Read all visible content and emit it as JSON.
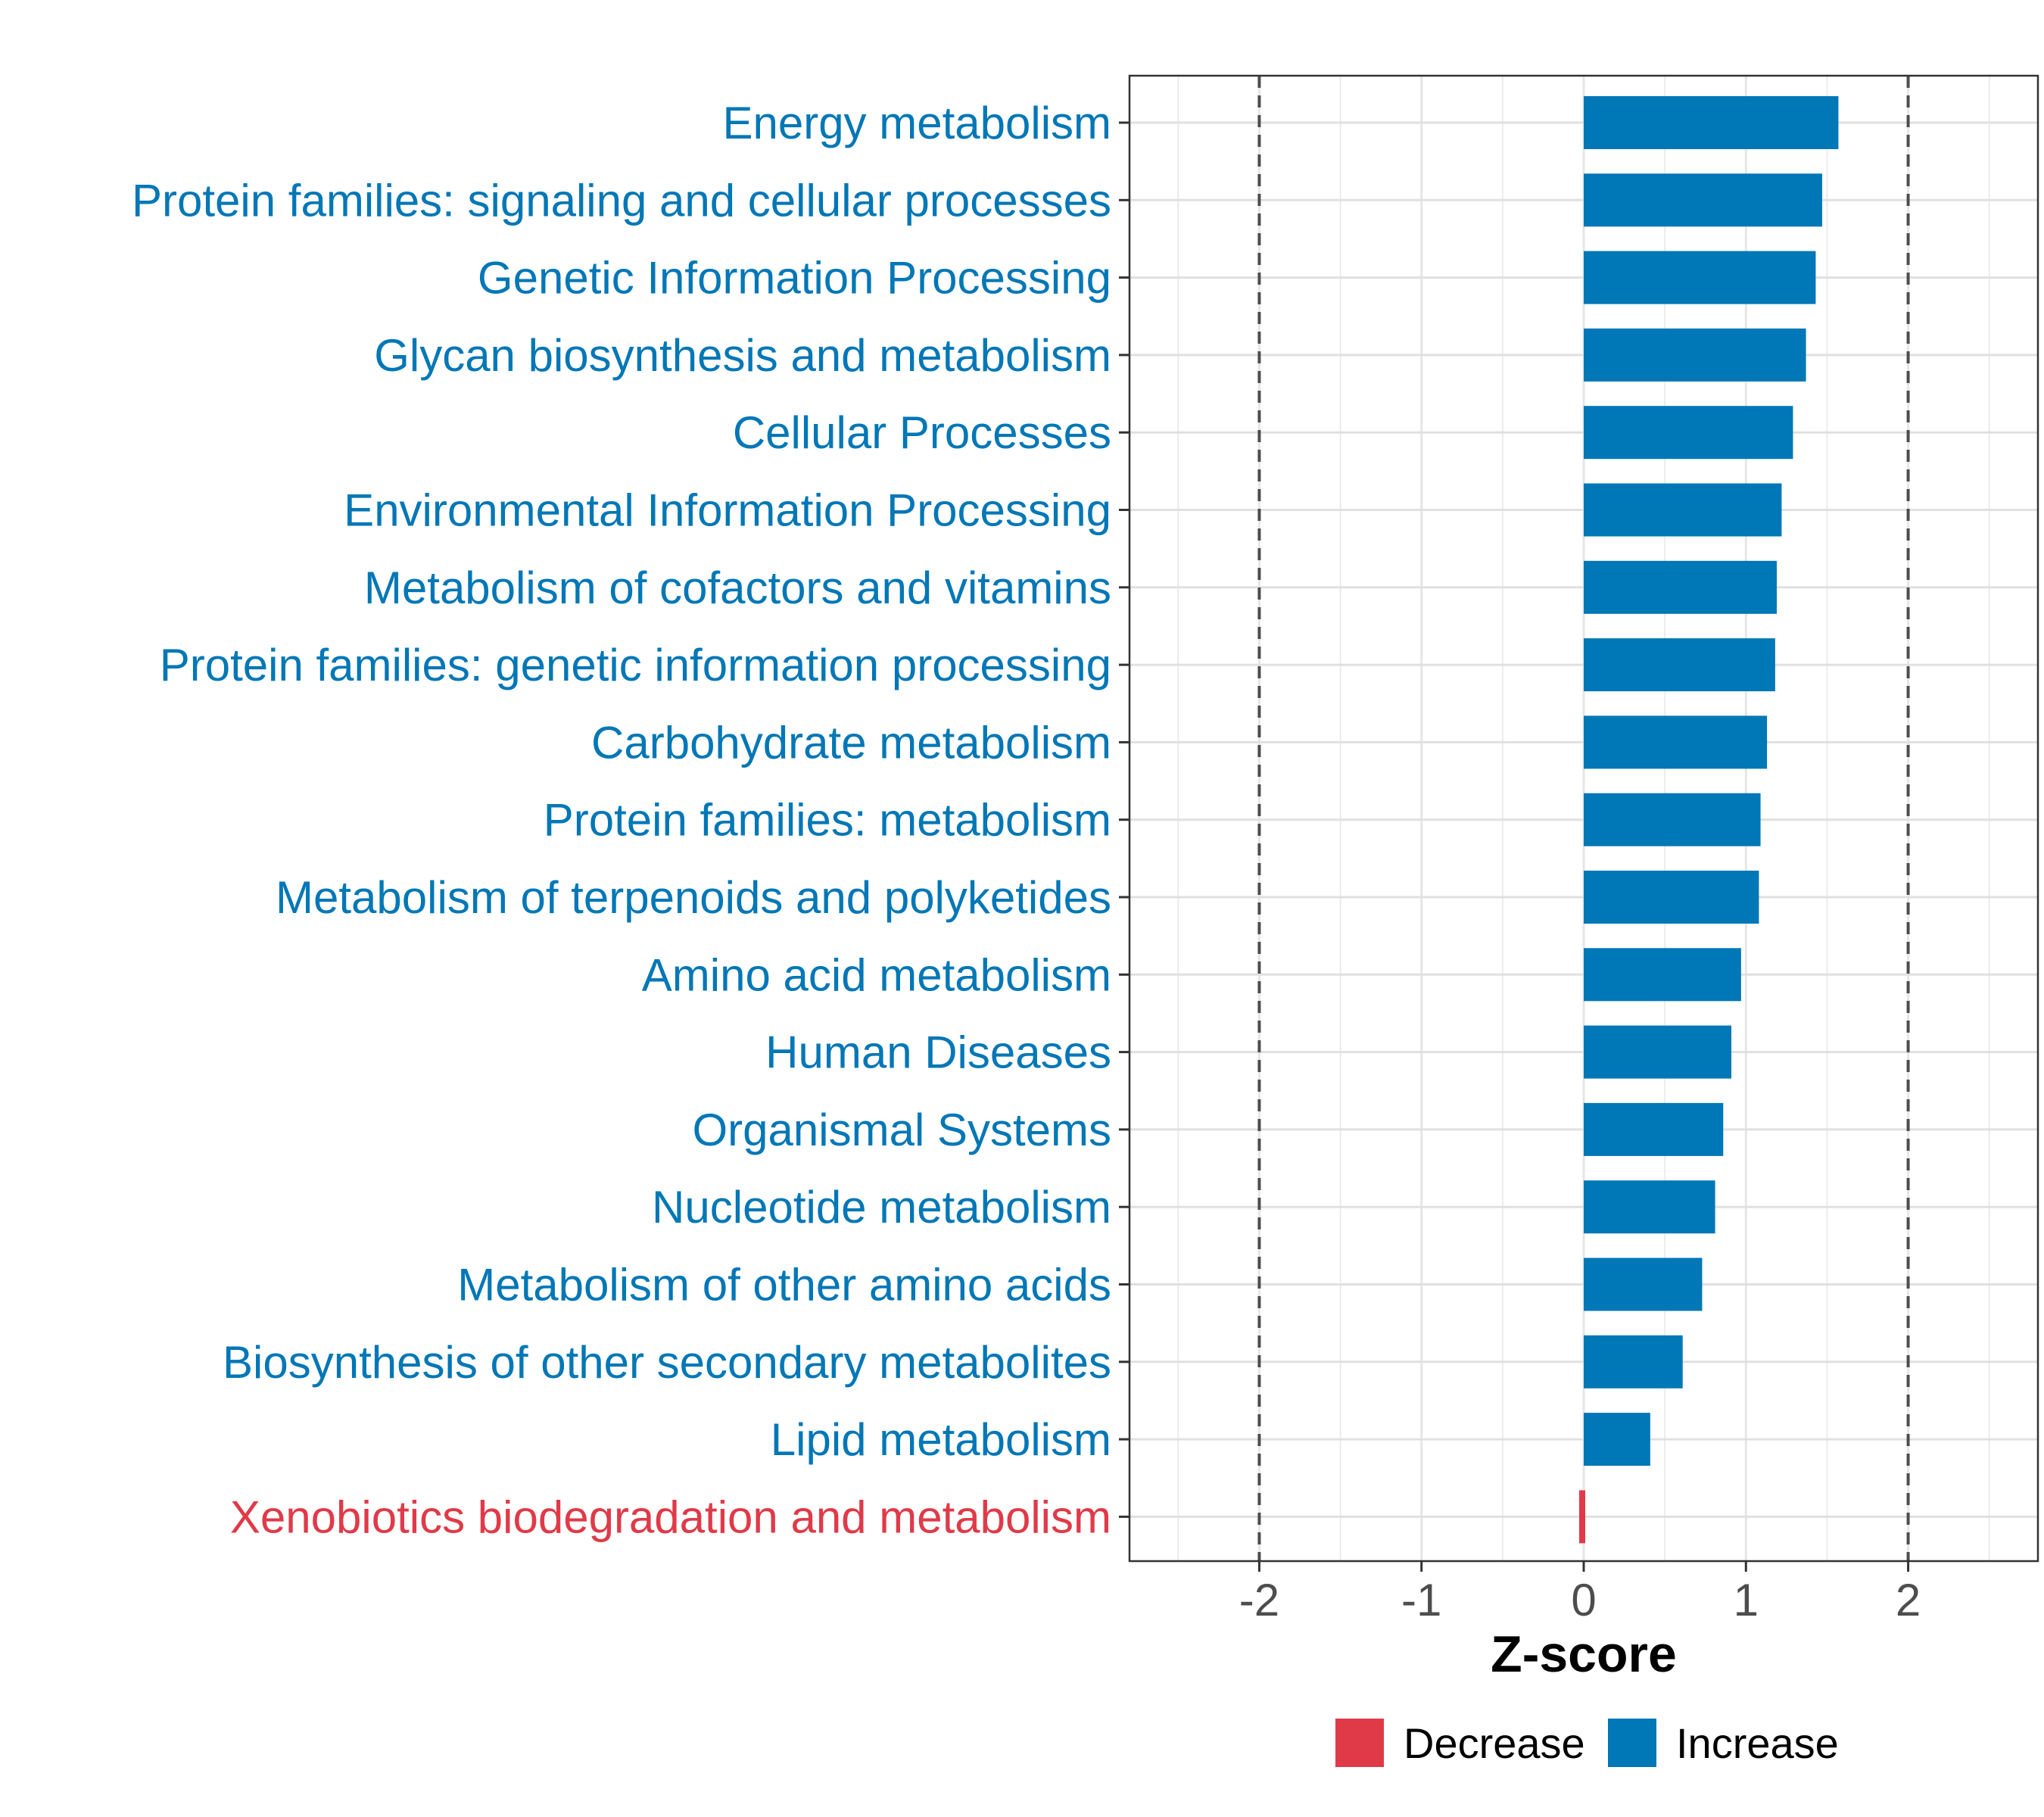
{
  "chart_data": {
    "type": "bar",
    "orientation": "horizontal",
    "title": "",
    "xlabel": "Z-score",
    "ylabel": "",
    "xlim": [
      -2.8,
      2.8
    ],
    "xticks": [
      -2,
      -1,
      0,
      1,
      2
    ],
    "xtick_labels": [
      "-2",
      "-1",
      "0",
      "1",
      "2"
    ],
    "reference_lines": [
      -2,
      2
    ],
    "grid": true,
    "categories": [
      "Energy metabolism",
      "Protein families: signaling and cellular processes",
      "Genetic Information Processing",
      "Glycan biosynthesis and metabolism",
      "Cellular Processes",
      "Environmental Information Processing",
      "Metabolism of cofactors and vitamins",
      "Protein families: genetic information processing",
      "Carbohydrate metabolism",
      "Protein families: metabolism",
      "Metabolism of terpenoids and polyketides",
      "Amino acid metabolism",
      "Human Diseases",
      "Organismal Systems",
      "Nucleotide metabolism",
      "Metabolism of other amino acids",
      "Biosynthesis of other secondary metabolites",
      "Lipid metabolism",
      "Xenobiotics biodegradation and metabolism"
    ],
    "values": [
      1.57,
      1.47,
      1.43,
      1.37,
      1.29,
      1.22,
      1.19,
      1.18,
      1.13,
      1.09,
      1.08,
      0.97,
      0.91,
      0.86,
      0.81,
      0.73,
      0.61,
      0.41,
      -0.02
    ],
    "groups": [
      "Increase",
      "Increase",
      "Increase",
      "Increase",
      "Increase",
      "Increase",
      "Increase",
      "Increase",
      "Increase",
      "Increase",
      "Increase",
      "Increase",
      "Increase",
      "Increase",
      "Increase",
      "Increase",
      "Increase",
      "Increase",
      "Decrease"
    ],
    "legend": {
      "position": "bottom",
      "entries": [
        {
          "label": "Decrease",
          "color": "#E03A48"
        },
        {
          "label": "Increase",
          "color": "#0077B6"
        }
      ]
    }
  }
}
